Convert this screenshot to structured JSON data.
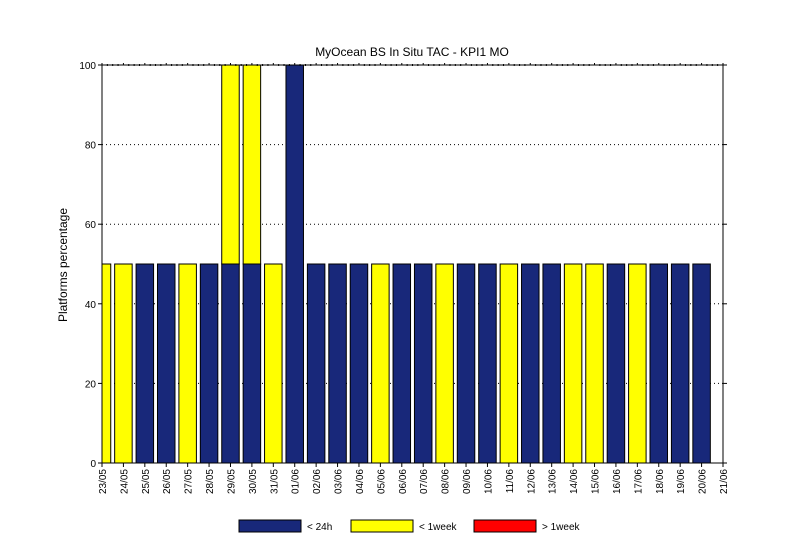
{
  "chart_data": {
    "type": "bar",
    "stacked": true,
    "title": "MyOcean  BS In Situ TAC - KPI1  MO",
    "xlabel": "",
    "ylabel": "Platforms percentage",
    "ylim": [
      0,
      100
    ],
    "yticks": [
      "0",
      "20",
      "40",
      "60",
      "80",
      "100"
    ],
    "grid": "horizontal dotted",
    "legend_position": "bottom",
    "categories": [
      "23/05",
      "24/05",
      "25/05",
      "26/05",
      "27/05",
      "28/05",
      "29/05",
      "30/05",
      "31/05",
      "01/06",
      "02/06",
      "03/06",
      "04/06",
      "05/06",
      "06/06",
      "07/06",
      "08/06",
      "09/06",
      "10/06",
      "11/06",
      "12/06",
      "13/06",
      "14/06",
      "15/06",
      "16/06",
      "17/06",
      "18/06",
      "19/06",
      "20/06",
      "21/06"
    ],
    "series": [
      {
        "name": "< 24h",
        "color": "#18287a",
        "values": [
          0,
          0,
          50,
          50,
          0,
          50,
          50,
          50,
          0,
          100,
          50,
          50,
          50,
          0,
          50,
          50,
          0,
          50,
          50,
          0,
          50,
          50,
          0,
          0,
          50,
          0,
          50,
          50,
          50,
          0
        ]
      },
      {
        "name": "< 1week",
        "color": "#ffff00",
        "values": [
          50,
          50,
          0,
          0,
          50,
          0,
          50,
          50,
          50,
          0,
          0,
          0,
          0,
          50,
          0,
          0,
          50,
          0,
          0,
          50,
          0,
          0,
          50,
          50,
          0,
          50,
          0,
          0,
          0,
          0
        ]
      },
      {
        "name": "> 1week",
        "color": "#ff0000",
        "values": [
          0,
          0,
          0,
          0,
          0,
          0,
          0,
          0,
          0,
          0,
          0,
          0,
          0,
          0,
          0,
          0,
          0,
          0,
          0,
          0,
          0,
          0,
          0,
          0,
          0,
          0,
          0,
          0,
          0,
          0
        ]
      }
    ]
  }
}
